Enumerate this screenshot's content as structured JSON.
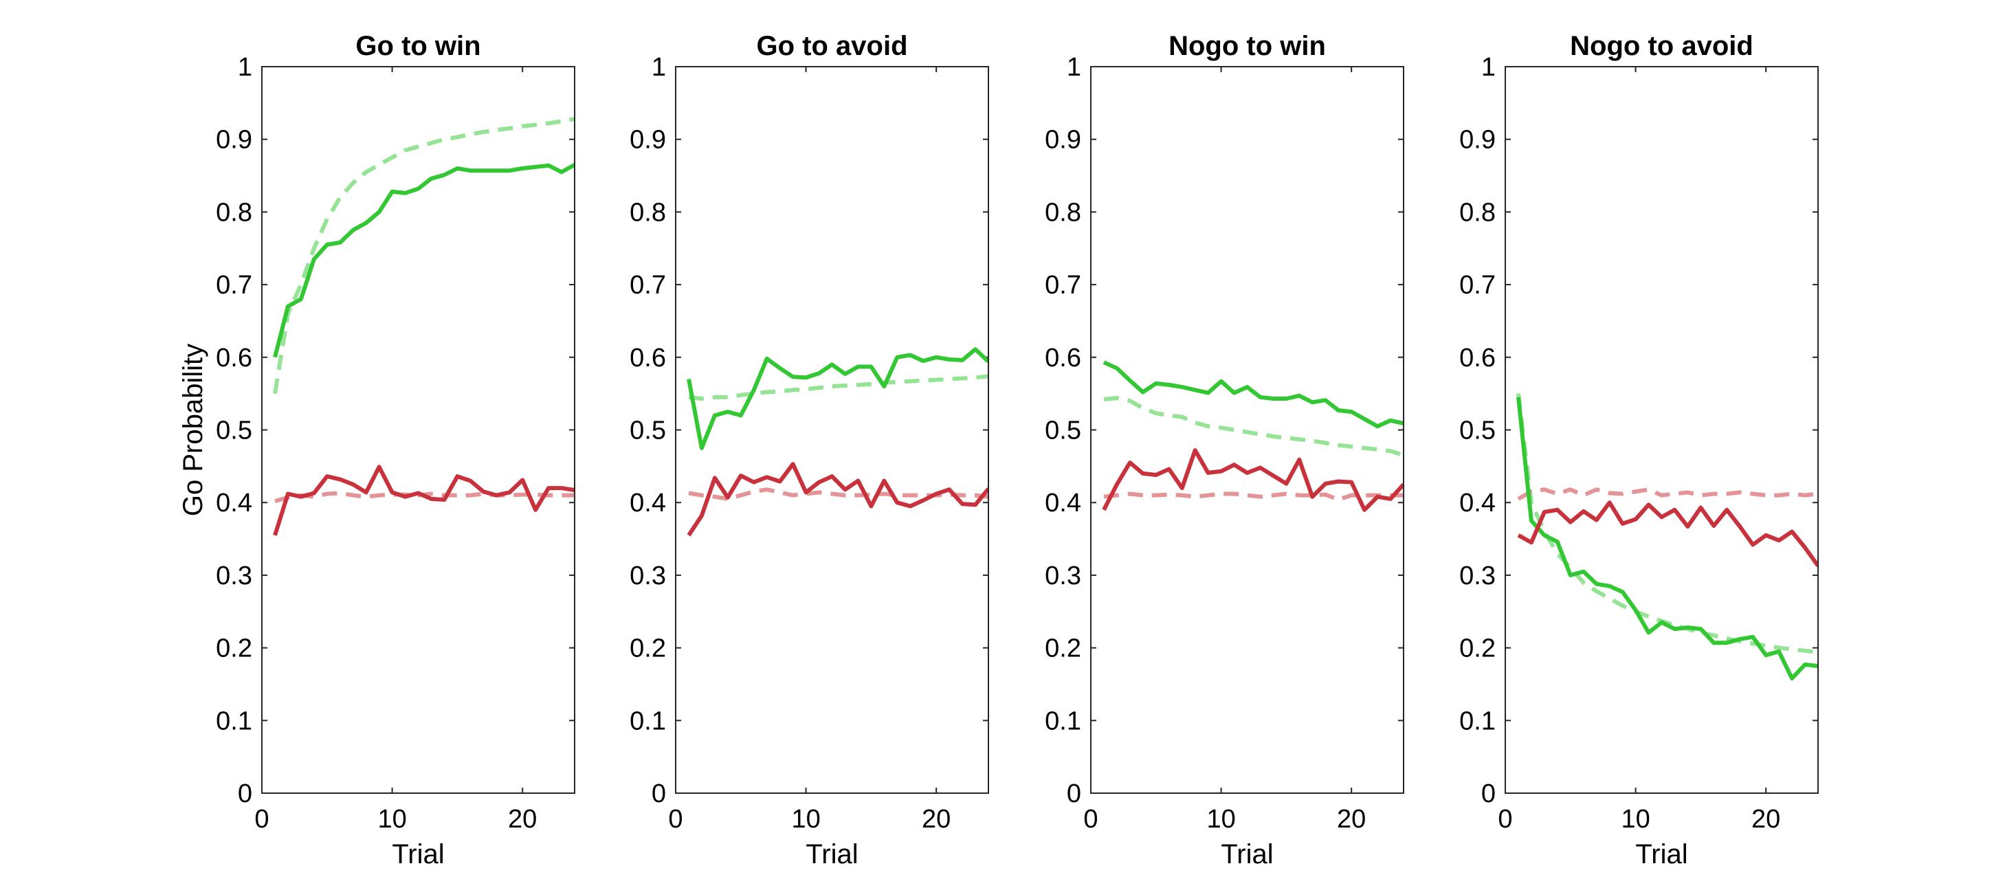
{
  "chart_data": [
    {
      "type": "line",
      "title": "Go to win",
      "xlabel": "Trial",
      "ylabel": "Go Probability",
      "xlim": [
        0,
        24
      ],
      "ylim": [
        0,
        1
      ],
      "xticks": [
        "0",
        "10",
        "20"
      ],
      "yticks": [
        "0",
        "0.1",
        "0.2",
        "0.3",
        "0.4",
        "0.5",
        "0.6",
        "0.7",
        "0.8",
        "0.9",
        "1"
      ],
      "grid": false,
      "x": [
        1,
        2,
        3,
        4,
        5,
        6,
        7,
        8,
        9,
        10,
        11,
        12,
        13,
        14,
        15,
        16,
        17,
        18,
        19,
        20,
        21,
        22,
        23,
        24
      ],
      "series": [
        {
          "color": "#33c733",
          "style": "solid",
          "values": [
            0.6,
            0.67,
            0.68,
            0.735,
            0.755,
            0.758,
            0.775,
            0.785,
            0.8,
            0.828,
            0.826,
            0.832,
            0.846,
            0.851,
            0.86,
            0.857,
            0.857,
            0.857,
            0.857,
            0.86,
            0.862,
            0.864,
            0.855,
            0.865
          ]
        },
        {
          "color": "#95e395",
          "style": "dashed",
          "values": [
            0.55,
            0.66,
            0.7,
            0.75,
            0.79,
            0.82,
            0.84,
            0.855,
            0.865,
            0.875,
            0.885,
            0.89,
            0.895,
            0.9,
            0.903,
            0.907,
            0.91,
            0.913,
            0.915,
            0.918,
            0.92,
            0.922,
            0.925,
            0.928
          ]
        },
        {
          "color": "#c8323c",
          "style": "solid",
          "values": [
            0.355,
            0.412,
            0.408,
            0.413,
            0.436,
            0.432,
            0.425,
            0.414,
            0.449,
            0.414,
            0.408,
            0.413,
            0.405,
            0.404,
            0.436,
            0.43,
            0.415,
            0.41,
            0.414,
            0.431,
            0.39,
            0.42,
            0.42,
            0.417
          ]
        },
        {
          "color": "#e49497",
          "style": "dashed",
          "values": [
            0.402,
            0.407,
            0.41,
            0.408,
            0.412,
            0.413,
            0.41,
            0.408,
            0.41,
            0.411,
            0.411,
            0.41,
            0.412,
            0.41,
            0.41,
            0.41,
            0.412,
            0.41,
            0.41,
            0.411,
            0.411,
            0.41,
            0.41,
            0.41
          ]
        }
      ]
    },
    {
      "type": "line",
      "title": "Go to avoid",
      "xlabel": "Trial",
      "ylabel": "",
      "xlim": [
        0,
        24
      ],
      "ylim": [
        0,
        1
      ],
      "xticks": [
        "0",
        "10",
        "20"
      ],
      "yticks": [
        "0",
        "0.1",
        "0.2",
        "0.3",
        "0.4",
        "0.5",
        "0.6",
        "0.7",
        "0.8",
        "0.9",
        "1"
      ],
      "grid": false,
      "x": [
        1,
        2,
        3,
        4,
        5,
        6,
        7,
        8,
        9,
        10,
        11,
        12,
        13,
        14,
        15,
        16,
        17,
        18,
        19,
        20,
        21,
        22,
        23,
        24
      ],
      "series": [
        {
          "color": "#33c733",
          "style": "solid",
          "values": [
            0.57,
            0.475,
            0.52,
            0.525,
            0.52,
            0.555,
            0.598,
            0.585,
            0.573,
            0.572,
            0.578,
            0.59,
            0.577,
            0.587,
            0.587,
            0.56,
            0.6,
            0.603,
            0.595,
            0.6,
            0.597,
            0.596,
            0.611,
            0.594
          ]
        },
        {
          "color": "#95e395",
          "style": "dashed",
          "values": [
            0.545,
            0.543,
            0.545,
            0.545,
            0.548,
            0.55,
            0.552,
            0.553,
            0.555,
            0.556,
            0.558,
            0.56,
            0.561,
            0.562,
            0.563,
            0.565,
            0.566,
            0.567,
            0.568,
            0.569,
            0.57,
            0.571,
            0.572,
            0.574
          ]
        },
        {
          "color": "#c8323c",
          "style": "solid",
          "values": [
            0.355,
            0.382,
            0.434,
            0.407,
            0.437,
            0.428,
            0.435,
            0.429,
            0.453,
            0.414,
            0.428,
            0.436,
            0.418,
            0.43,
            0.395,
            0.43,
            0.4,
            0.395,
            0.403,
            0.412,
            0.418,
            0.398,
            0.397,
            0.419
          ]
        },
        {
          "color": "#e49497",
          "style": "dashed",
          "values": [
            0.413,
            0.41,
            0.408,
            0.405,
            0.41,
            0.415,
            0.418,
            0.414,
            0.41,
            0.412,
            0.414,
            0.412,
            0.41,
            0.41,
            0.411,
            0.412,
            0.41,
            0.41,
            0.41,
            0.41,
            0.411,
            0.41,
            0.41,
            0.408
          ]
        }
      ]
    },
    {
      "type": "line",
      "title": "Nogo to win",
      "xlabel": "Trial",
      "ylabel": "",
      "xlim": [
        0,
        24
      ],
      "ylim": [
        0,
        1
      ],
      "xticks": [
        "0",
        "10",
        "20"
      ],
      "yticks": [
        "0",
        "0.1",
        "0.2",
        "0.3",
        "0.4",
        "0.5",
        "0.6",
        "0.7",
        "0.8",
        "0.9",
        "1"
      ],
      "grid": false,
      "x": [
        1,
        2,
        3,
        4,
        5,
        6,
        7,
        8,
        9,
        10,
        11,
        12,
        13,
        14,
        15,
        16,
        17,
        18,
        19,
        20,
        21,
        22,
        23,
        24
      ],
      "series": [
        {
          "color": "#33c733",
          "style": "solid",
          "values": [
            0.593,
            0.585,
            0.568,
            0.552,
            0.564,
            0.562,
            0.559,
            0.555,
            0.551,
            0.567,
            0.551,
            0.559,
            0.545,
            0.543,
            0.543,
            0.547,
            0.538,
            0.541,
            0.527,
            0.525,
            0.515,
            0.505,
            0.513,
            0.509
          ]
        },
        {
          "color": "#95e395",
          "style": "dashed",
          "values": [
            0.542,
            0.544,
            0.54,
            0.53,
            0.523,
            0.52,
            0.518,
            0.51,
            0.505,
            0.503,
            0.5,
            0.497,
            0.494,
            0.491,
            0.489,
            0.487,
            0.485,
            0.482,
            0.479,
            0.477,
            0.475,
            0.473,
            0.471,
            0.465
          ]
        },
        {
          "color": "#c8323c",
          "style": "solid",
          "values": [
            0.39,
            0.425,
            0.455,
            0.44,
            0.438,
            0.446,
            0.42,
            0.472,
            0.441,
            0.443,
            0.452,
            0.441,
            0.448,
            0.437,
            0.426,
            0.459,
            0.408,
            0.426,
            0.429,
            0.428,
            0.39,
            0.408,
            0.405,
            0.425
          ]
        },
        {
          "color": "#e49497",
          "style": "dashed",
          "values": [
            0.408,
            0.41,
            0.412,
            0.41,
            0.41,
            0.411,
            0.41,
            0.408,
            0.41,
            0.412,
            0.412,
            0.41,
            0.408,
            0.41,
            0.412,
            0.41,
            0.41,
            0.411,
            0.404,
            0.41,
            0.41,
            0.41,
            0.41,
            0.41
          ]
        }
      ]
    },
    {
      "type": "line",
      "title": "Nogo to avoid",
      "xlabel": "Trial",
      "ylabel": "",
      "xlim": [
        0,
        24
      ],
      "ylim": [
        0,
        1
      ],
      "xticks": [
        "0",
        "10",
        "20"
      ],
      "yticks": [
        "0",
        "0.1",
        "0.2",
        "0.3",
        "0.4",
        "0.5",
        "0.6",
        "0.7",
        "0.8",
        "0.9",
        "1"
      ],
      "grid": false,
      "x": [
        1,
        2,
        3,
        4,
        5,
        6,
        7,
        8,
        9,
        10,
        11,
        12,
        13,
        14,
        15,
        16,
        17,
        18,
        19,
        20,
        21,
        22,
        23,
        24
      ],
      "series": [
        {
          "color": "#33c733",
          "style": "solid",
          "values": [
            0.545,
            0.375,
            0.355,
            0.346,
            0.3,
            0.305,
            0.288,
            0.285,
            0.277,
            0.252,
            0.221,
            0.235,
            0.226,
            0.228,
            0.226,
            0.207,
            0.207,
            0.212,
            0.215,
            0.19,
            0.195,
            0.158,
            0.177,
            0.175
          ]
        },
        {
          "color": "#95e395",
          "style": "dashed",
          "values": [
            0.55,
            0.4,
            0.36,
            0.33,
            0.31,
            0.29,
            0.278,
            0.268,
            0.258,
            0.25,
            0.243,
            0.237,
            0.231,
            0.226,
            0.221,
            0.217,
            0.213,
            0.209,
            0.206,
            0.203,
            0.2,
            0.198,
            0.196,
            0.194
          ]
        },
        {
          "color": "#c8323c",
          "style": "solid",
          "values": [
            0.355,
            0.345,
            0.387,
            0.39,
            0.373,
            0.388,
            0.376,
            0.4,
            0.371,
            0.377,
            0.397,
            0.38,
            0.39,
            0.367,
            0.393,
            0.368,
            0.39,
            0.367,
            0.342,
            0.355,
            0.348,
            0.36,
            0.338,
            0.313
          ]
        },
        {
          "color": "#e49497",
          "style": "dashed",
          "values": [
            0.405,
            0.415,
            0.418,
            0.412,
            0.418,
            0.41,
            0.418,
            0.413,
            0.412,
            0.415,
            0.418,
            0.41,
            0.412,
            0.414,
            0.41,
            0.412,
            0.412,
            0.414,
            0.412,
            0.41,
            0.41,
            0.412,
            0.41,
            0.412
          ]
        }
      ]
    }
  ]
}
